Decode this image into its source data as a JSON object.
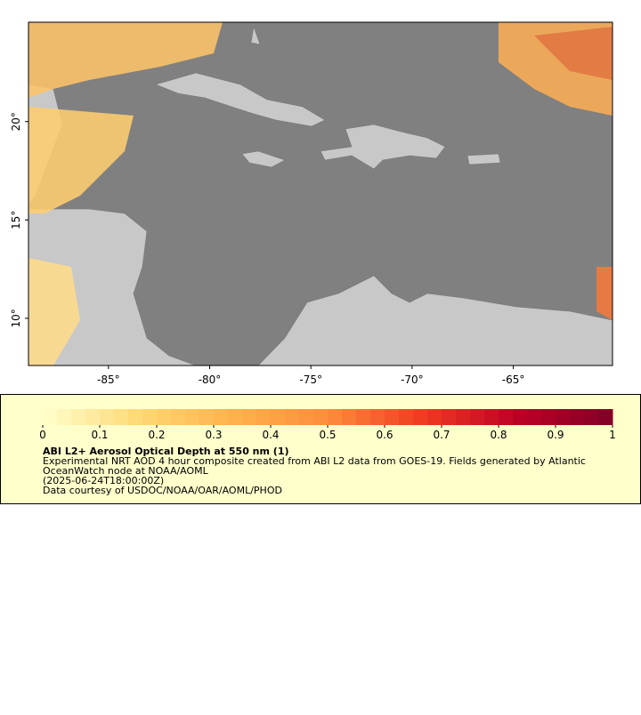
{
  "map": {
    "xlim": [
      -88.95,
      -60.1
    ],
    "ylim": [
      7.6,
      25.05
    ],
    "xticks": [
      {
        "value": -85,
        "label": "-85°"
      },
      {
        "value": -80,
        "label": "-80°"
      },
      {
        "value": -75,
        "label": "-75°"
      },
      {
        "value": -70,
        "label": "-70°"
      },
      {
        "value": -65,
        "label": "-65°"
      }
    ],
    "yticks": [
      {
        "value": 10,
        "label": "10°"
      },
      {
        "value": 15,
        "label": "15°"
      },
      {
        "value": 20,
        "label": "20°"
      }
    ]
  },
  "colorbar": {
    "range": [
      0,
      1
    ],
    "ticks": [
      0,
      0.1,
      0.2,
      0.3,
      0.4,
      0.5,
      0.6,
      0.7,
      0.8,
      0.9,
      1
    ],
    "colors": [
      "#ffffcc",
      "#fed976",
      "#feb24c",
      "#fd8d3c",
      "#f03b20",
      "#bd0026",
      "#800026"
    ]
  },
  "legend": {
    "title": "ABI L2+ Aerosol Optical Depth at 550 nm (1)",
    "lines": [
      "Experimental NRT AOD 4 hour composite created from ABI L2 data from GOES-19. Fields generated by Atlantic",
      "OceanWatch node at NOAA/AOML",
      "(2025-06-24T18:00:00Z)",
      "Data courtesy of USDOC/NOAA/OAR/AOML/PHOD"
    ]
  }
}
